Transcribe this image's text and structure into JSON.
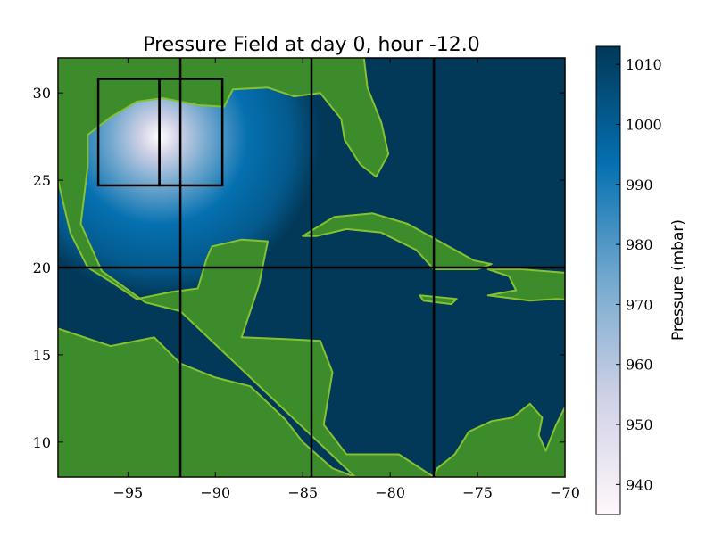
{
  "chart_data": {
    "type": "heatmap",
    "title": "Pressure Field at day 0, hour -12.0",
    "xlabel": "",
    "ylabel": "",
    "xlim": [
      -99,
      -70
    ],
    "ylim": [
      8,
      32
    ],
    "x_ticks": [
      -95,
      -90,
      -85,
      -80,
      -75,
      -70
    ],
    "x_tick_labels": [
      "−95",
      "−90",
      "−85",
      "−80",
      "−75",
      "−70"
    ],
    "y_ticks": [
      10,
      15,
      20,
      25,
      30
    ],
    "y_tick_labels": [
      "10",
      "15",
      "20",
      "25",
      "30"
    ],
    "grid": false,
    "colorbar": {
      "label": "Pressure (mbar)",
      "range": [
        935,
        1013
      ],
      "ticks": [
        940,
        950,
        960,
        970,
        980,
        990,
        1000,
        1010
      ],
      "tick_labels": [
        "940",
        "950",
        "960",
        "970",
        "980",
        "990",
        "1000",
        "1010"
      ]
    },
    "pressure_field": {
      "ambient_mbar": 1013,
      "center_lon": -93.2,
      "center_lat": 27.5,
      "central_pressure_mbar": 935
    },
    "land_color": "#3d8c2b",
    "land_highlight_color": "#86c132",
    "colormap": [
      "#fff7fb",
      "#d0d1e6",
      "#74a9cf",
      "#0570b0",
      "#023858"
    ],
    "grid_lines": {
      "vertical_lon": [
        -92,
        -84.5,
        -77.5
      ],
      "horizontal_lat": [
        20
      ]
    },
    "boxes": [
      {
        "lon": [
          -96.7,
          -93.2
        ],
        "lat": [
          24.7,
          30.8
        ]
      },
      {
        "lon": [
          -93.2,
          -89.6
        ],
        "lat": [
          24.7,
          30.8
        ]
      }
    ],
    "land_regions": [
      {
        "name": "north-america",
        "points": [
          [
            -99,
            32
          ],
          [
            -99,
            25
          ],
          [
            -98.3,
            22
          ],
          [
            -97.3,
            20
          ],
          [
            -96,
            19.2
          ],
          [
            -94.5,
            18.2
          ],
          [
            -92.5,
            18.6
          ],
          [
            -91,
            18.8
          ],
          [
            -90.5,
            20.5
          ],
          [
            -90.2,
            21.2
          ],
          [
            -88.5,
            21.6
          ],
          [
            -87,
            21.5
          ],
          [
            -87.5,
            19
          ],
          [
            -88.5,
            16
          ],
          [
            -86,
            15.9
          ],
          [
            -84,
            15.8
          ],
          [
            -83.3,
            14
          ],
          [
            -83.8,
            11
          ],
          [
            -82.5,
            9.3
          ],
          [
            -79.5,
            9.3
          ],
          [
            -77.5,
            8
          ],
          [
            -99,
            8
          ],
          [
            -99,
            16.5
          ],
          [
            -96,
            15.5
          ],
          [
            -93.5,
            16
          ],
          [
            -92,
            14.5
          ],
          [
            -90,
            13.7
          ],
          [
            -88,
            13.2
          ],
          [
            -86,
            11.3
          ],
          [
            -85,
            10
          ],
          [
            -83.3,
            8.5
          ],
          [
            -82,
            8
          ],
          [
            -92,
            17.5
          ],
          [
            -94,
            18
          ],
          [
            -96.5,
            19.8
          ],
          [
            -97.7,
            22.5
          ],
          [
            -97.3,
            25.8
          ],
          [
            -97.3,
            27.6
          ],
          [
            -96,
            28.6
          ],
          [
            -94.5,
            29.5
          ],
          [
            -93,
            29.7
          ],
          [
            -91,
            29.3
          ],
          [
            -89.5,
            29.2
          ],
          [
            -89,
            30.2
          ],
          [
            -87,
            30.3
          ],
          [
            -85.5,
            29.8
          ],
          [
            -84,
            30
          ],
          [
            -82.8,
            28.5
          ],
          [
            -82.6,
            27.3
          ],
          [
            -81.7,
            25.9
          ],
          [
            -80.8,
            25.2
          ],
          [
            -80.1,
            26.5
          ],
          [
            -80.5,
            28.3
          ],
          [
            -81.3,
            30.3
          ],
          [
            -81.5,
            32
          ]
        ]
      },
      {
        "name": "cuba",
        "points": [
          [
            -85,
            21.8
          ],
          [
            -83.2,
            22.9
          ],
          [
            -81,
            23.1
          ],
          [
            -79,
            22.5
          ],
          [
            -77,
            21.4
          ],
          [
            -75.2,
            20.4
          ],
          [
            -74.2,
            20.2
          ],
          [
            -75,
            19.9
          ],
          [
            -77.5,
            19.9
          ],
          [
            -78.5,
            21
          ],
          [
            -80.5,
            22
          ],
          [
            -82.5,
            22.2
          ],
          [
            -84.2,
            21.8
          ]
        ]
      },
      {
        "name": "hispaniola",
        "points": [
          [
            -74.4,
            19.9
          ],
          [
            -72.5,
            19.9
          ],
          [
            -70,
            19.7
          ],
          [
            -68.3,
            18.6
          ],
          [
            -68.6,
            18.1
          ],
          [
            -70.5,
            18.2
          ],
          [
            -72,
            18.1
          ],
          [
            -74.4,
            18.4
          ],
          [
            -72.8,
            18.7
          ],
          [
            -73.2,
            19.5
          ]
        ]
      },
      {
        "name": "jamaica",
        "points": [
          [
            -78.3,
            18.4
          ],
          [
            -76.2,
            18.2
          ],
          [
            -76.5,
            17.9
          ],
          [
            -78.1,
            18.1
          ]
        ]
      },
      {
        "name": "south-america",
        "points": [
          [
            -77.5,
            8
          ],
          [
            -77.3,
            8.5
          ],
          [
            -76.3,
            9.3
          ],
          [
            -75.5,
            10.6
          ],
          [
            -74.2,
            11.2
          ],
          [
            -73,
            11.4
          ],
          [
            -72,
            12.2
          ],
          [
            -71.3,
            11.4
          ],
          [
            -71.5,
            10.4
          ],
          [
            -71.1,
            9.5
          ],
          [
            -70.5,
            11
          ],
          [
            -70,
            12
          ],
          [
            -70,
            8
          ]
        ]
      }
    ]
  }
}
